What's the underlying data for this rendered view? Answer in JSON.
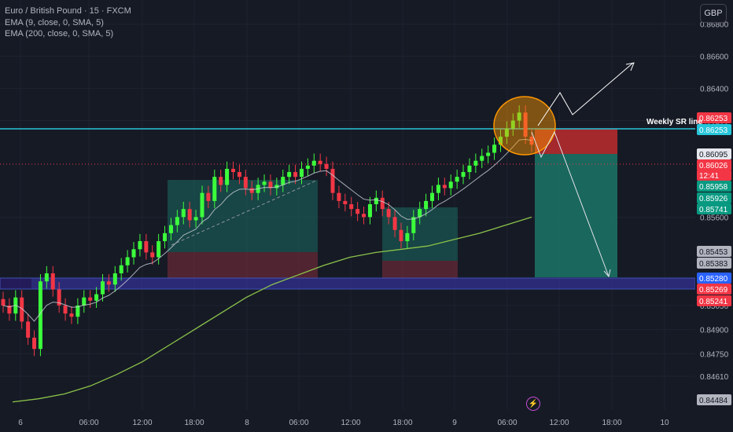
{
  "legend": {
    "title": "Euro / British Pound · 15 · FXCM",
    "ema9": "EMA (9, close, 0, SMA, 5)",
    "ema200": "EMA (200, close, 0, SMA, 5)"
  },
  "currency_button": "GBP",
  "annotation": {
    "sr_line_label": "Weekly SR line",
    "bolt_icon": "⚡"
  },
  "colors": {
    "background": "#161a25",
    "up": "#4caf50",
    "up_bright": "#3cff3c",
    "down": "#f23645",
    "ema9": "#c9d1d9",
    "ema200": "#8bc34a",
    "sr_line": "#26c6da",
    "support_zone": "#3f51b5",
    "target_zone": "#1b7a6c",
    "stop_zone": "#d32f2f",
    "highlight_circle": "#ff9800"
  },
  "chart_data": {
    "type": "candlestick",
    "symbol": "EURGBP",
    "timeframe": "15",
    "y_axis": {
      "ticks": [
        "0.86800",
        "0.86600",
        "0.86400",
        "0.86200",
        "0.85600",
        "0.85050",
        "0.84900",
        "0.84750",
        "0.84610"
      ],
      "ylim": [
        0.844,
        0.8695
      ]
    },
    "x_axis": {
      "ticks": [
        "6",
        "06:00",
        "12:00",
        "18:00",
        "8",
        "06:00",
        "12:00",
        "18:00",
        "9",
        "06:00",
        "12:00",
        "18:00",
        "10"
      ]
    },
    "price_labels": [
      {
        "value": "0.86253",
        "color": "#f23645"
      },
      {
        "value": "0.86253",
        "color": "#26c6da"
      },
      {
        "value": "0.86095",
        "color": "#e6e8ee"
      },
      {
        "value": "0.86026",
        "color": "#f23645"
      },
      {
        "value": "12:41",
        "color": "#f23645"
      },
      {
        "value": "0.85958",
        "color": "#089981"
      },
      {
        "value": "0.85926",
        "color": "#089981"
      },
      {
        "value": "0.85741",
        "color": "#089981"
      },
      {
        "value": "0.85453",
        "color": "#b2b5be"
      },
      {
        "value": "0.85383",
        "color": "#b2b5be"
      },
      {
        "value": "0.85280",
        "color": "#2962ff"
      },
      {
        "value": "0.85269",
        "color": "#f23645"
      },
      {
        "value": "0.85241",
        "color": "#f23645"
      },
      {
        "value": "0.84484",
        "color": "#b2b5be"
      }
    ],
    "candles_close_approx": [
      0.8505,
      0.85,
      0.851,
      0.8495,
      0.8485,
      0.8478,
      0.852,
      0.8525,
      0.8515,
      0.8505,
      0.85,
      0.8498,
      0.8505,
      0.851,
      0.8508,
      0.8512,
      0.852,
      0.8518,
      0.8525,
      0.853,
      0.8535,
      0.854,
      0.8545,
      0.8538,
      0.8535,
      0.8545,
      0.855,
      0.8555,
      0.856,
      0.8565,
      0.8558,
      0.856,
      0.8575,
      0.857,
      0.8585,
      0.858,
      0.859,
      0.8588,
      0.8585,
      0.8578,
      0.8575,
      0.858,
      0.8582,
      0.8578,
      0.858,
      0.8585,
      0.8588,
      0.8585,
      0.859,
      0.8592,
      0.8595,
      0.8593,
      0.859,
      0.8575,
      0.857,
      0.8568,
      0.8565,
      0.8562,
      0.856,
      0.8568,
      0.8572,
      0.8565,
      0.856,
      0.8552,
      0.8545,
      0.855,
      0.856,
      0.8565,
      0.857,
      0.8575,
      0.858,
      0.8578,
      0.8582,
      0.8585,
      0.8588,
      0.8592,
      0.8595,
      0.8598,
      0.86,
      0.8605,
      0.861,
      0.8615,
      0.862,
      0.8625,
      0.861,
      0.8605
    ],
    "ema200_approx": [
      0.8445,
      0.8447,
      0.845,
      0.8455,
      0.8462,
      0.847,
      0.848,
      0.849,
      0.85,
      0.851,
      0.8518,
      0.8524,
      0.853,
      0.8535,
      0.8538,
      0.854,
      0.8542,
      0.8546,
      0.855,
      0.8555,
      0.856
    ],
    "zones": [
      {
        "name": "weekly-sr-line",
        "price": 0.8623
      },
      {
        "name": "support-zone",
        "from": 0.85241,
        "to": 0.8528
      },
      {
        "name": "short-position",
        "entry": 0.86095,
        "stop": 0.86253,
        "target": 0.8528
      }
    ]
  }
}
